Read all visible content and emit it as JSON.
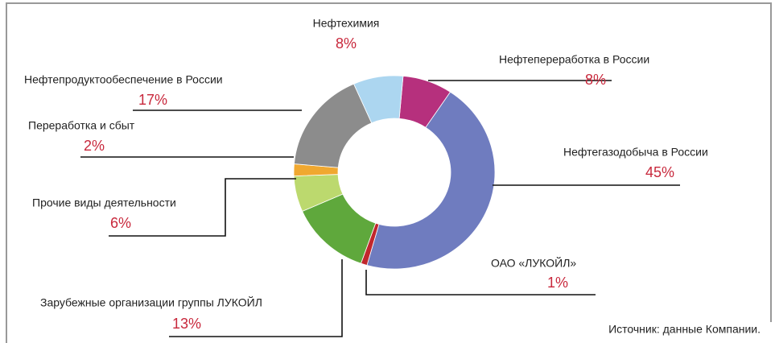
{
  "chart_data": {
    "type": "pie",
    "donut": true,
    "categories": [
      "Нефтепереработка в России",
      "Нефтегазодобыча в России",
      "ОАО «ЛУКОЙЛ»",
      "Зарубежные организации группы ЛУКОЙЛ",
      "Прочие виды деятельности",
      "Переработка и сбыт",
      "Нефтепродуктообеспечение в России",
      "Нефтехимия"
    ],
    "values": [
      8,
      45,
      1,
      13,
      6,
      2,
      17,
      8
    ],
    "value_labels": [
      "8%",
      "45%",
      "1%",
      "13%",
      "6%",
      "2%",
      "17%",
      "8%"
    ],
    "colors": [
      "#b6307d",
      "#6f7cbf",
      "#c1272d",
      "#5fa83c",
      "#bcd96e",
      "#f0a830",
      "#8c8c8c",
      "#acd6f0"
    ],
    "source": "Источник: данные Компании."
  }
}
